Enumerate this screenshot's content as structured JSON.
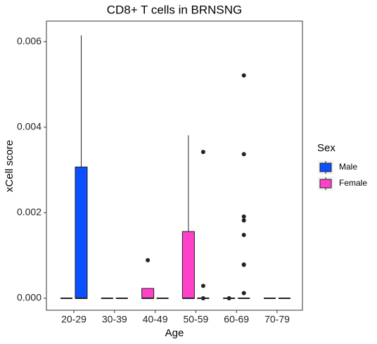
{
  "chart_data": {
    "type": "box",
    "title": "CD8+ T cells in BRNSNG",
    "x_label": "Age",
    "y_label": "xCell score",
    "categories": [
      "20-29",
      "30-39",
      "40-49",
      "50-59",
      "60-69",
      "70-79"
    ],
    "ylim": [
      -0.00028,
      0.00648
    ],
    "yticks": [
      {
        "value": 0,
        "label": "0.000"
      },
      0.002,
      0.004,
      0.006
    ],
    "legend_title": "Sex",
    "legend_position": "right",
    "series": [
      {
        "name": "Male",
        "color": "#0a50ff",
        "min": [
          0,
          0,
          0,
          0,
          0,
          0
        ],
        "q1": [
          0,
          0,
          0,
          0,
          0,
          0
        ],
        "median": [
          0,
          0,
          0,
          0,
          0,
          0
        ],
        "q3": [
          0.00307,
          0,
          0,
          0,
          0,
          0
        ],
        "max": [
          0.00615,
          0,
          0,
          0,
          0,
          0
        ],
        "outliers": [
          [],
          [],
          [],
          [
            0.00342,
            0.00029,
            0
          ],
          [
            0.00521,
            0.00337,
            0.00191,
            0.00182,
            0.00148,
            0.00079,
            0.00078,
            0.00012
          ],
          []
        ]
      },
      {
        "name": "Female",
        "color": "#ff40c8",
        "min": [
          0,
          0,
          0,
          0,
          0,
          0
        ],
        "q1": [
          0,
          0,
          0,
          0,
          0,
          0
        ],
        "median": [
          0,
          0,
          0,
          0,
          0,
          0
        ],
        "q3": [
          0,
          0,
          0.00023,
          0.00156,
          0,
          0
        ],
        "max": [
          0,
          0,
          0.00023,
          0.00381,
          0,
          0
        ],
        "outliers": [
          [],
          [],
          [
            0.00089
          ],
          [],
          [
            0
          ],
          []
        ]
      }
    ]
  }
}
